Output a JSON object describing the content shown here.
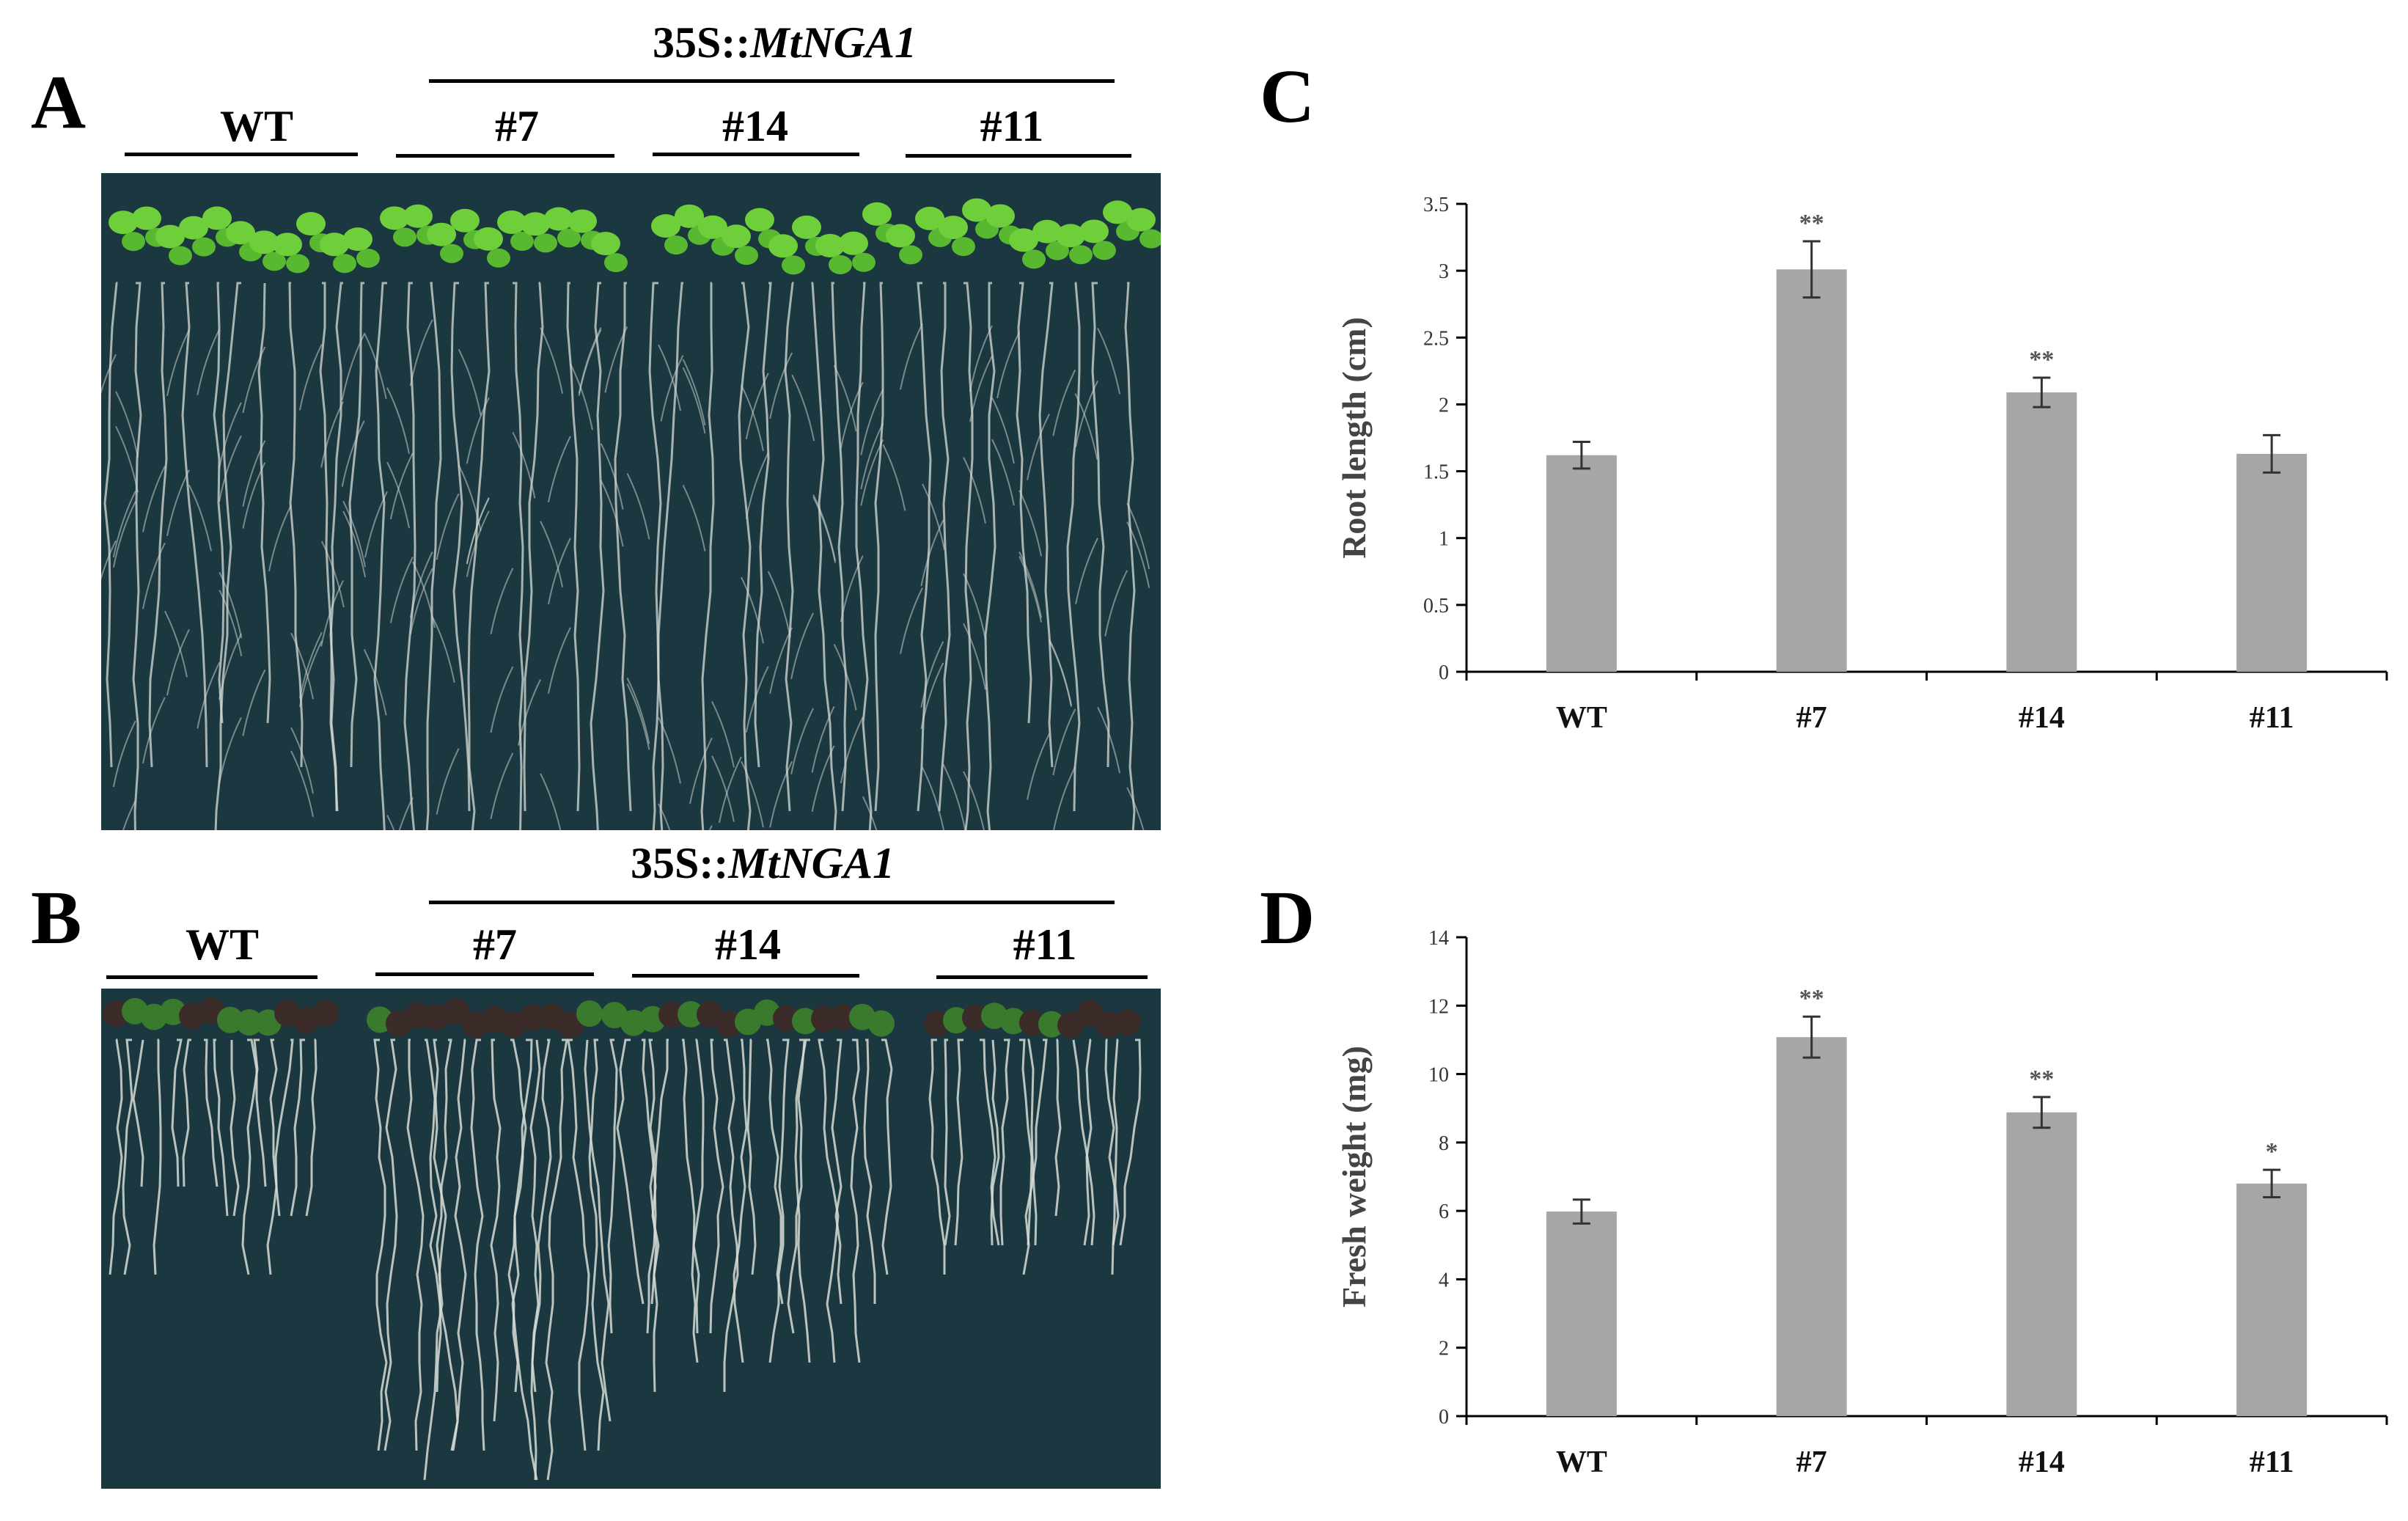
{
  "panels": {
    "A": {
      "letter": "A",
      "group_prefix": "35S::",
      "group_gene": "MtNGA1",
      "lines": [
        "WT",
        "#7",
        "#14",
        "#11"
      ]
    },
    "B": {
      "letter": "B",
      "group_prefix": "35S::",
      "group_gene": "MtNGA1",
      "lines": [
        "WT",
        "#7",
        "#14",
        "#11"
      ]
    },
    "C": {
      "letter": "C"
    },
    "D": {
      "letter": "D"
    }
  },
  "colors": {
    "bar": "#a6a6a6",
    "seedling_leaf": "#6fcf3a",
    "plate_background": "#1b3840",
    "root": "#d7dcd6"
  },
  "chart_data": [
    {
      "panel": "C",
      "type": "bar",
      "categories": [
        "WT",
        "#7",
        "#14",
        "#11"
      ],
      "values": [
        1.62,
        3.01,
        2.09,
        1.63
      ],
      "errors": [
        0.1,
        0.21,
        0.11,
        0.14
      ],
      "significance": [
        "",
        "**",
        "**",
        ""
      ],
      "ylabel": "Root length (cm)",
      "ylim": [
        0,
        3.5
      ],
      "yticks": [
        "0",
        "0.5",
        "1",
        "1.5",
        "2",
        "2.5",
        "3",
        "3.5"
      ],
      "grid": false
    },
    {
      "panel": "D",
      "type": "bar",
      "categories": [
        "WT",
        "#7",
        "#14",
        "#11"
      ],
      "values": [
        5.98,
        11.08,
        8.88,
        6.8
      ],
      "errors": [
        0.35,
        0.6,
        0.45,
        0.4
      ],
      "significance": [
        "",
        "**",
        "**",
        "*"
      ],
      "ylabel": "Fresh weight (mg)",
      "ylim": [
        0,
        14
      ],
      "yticks": [
        "0",
        "2",
        "4",
        "6",
        "8",
        "10",
        "12",
        "14"
      ],
      "grid": false
    }
  ]
}
